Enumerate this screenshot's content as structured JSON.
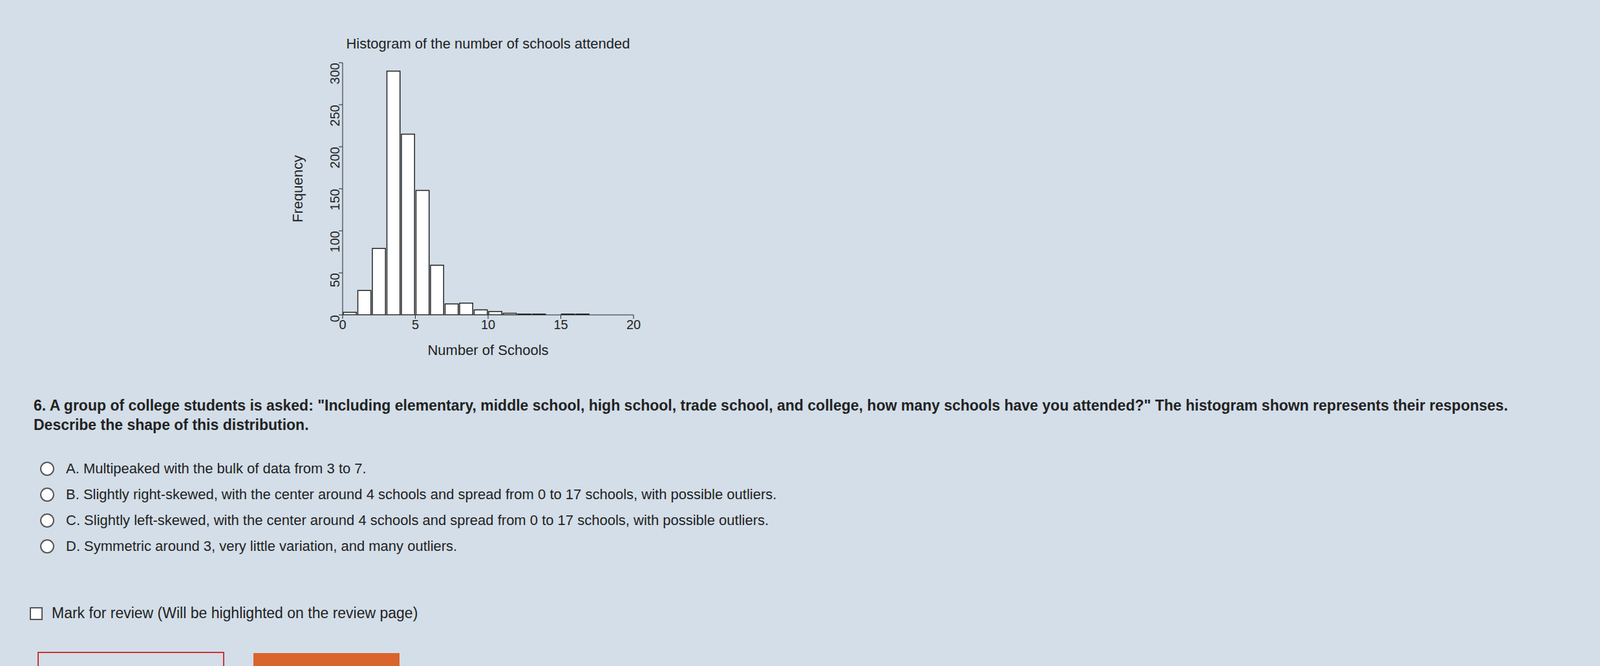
{
  "chart_data": {
    "type": "histogram",
    "title": "Histogram of the number of schools attended",
    "x_label": "Number of Schools",
    "y_label": "Frequency",
    "bins": [
      0,
      1,
      2,
      3,
      4,
      5,
      6,
      7,
      8,
      9,
      10,
      11,
      12,
      13,
      14,
      15,
      16,
      17
    ],
    "values": [
      3,
      29,
      79,
      290,
      215,
      148,
      59,
      13,
      14,
      6,
      4,
      2,
      1,
      1,
      0,
      1,
      1
    ],
    "color": "#ffffff",
    "xlim": [
      0,
      20
    ],
    "xticks": [
      0,
      5,
      10,
      15,
      20
    ],
    "ylim": [
      0,
      300
    ],
    "yticks": [
      0,
      50,
      100,
      150,
      200,
      250,
      300
    ],
    "grid": false
  },
  "question": {
    "text": "6. A group of college students is asked: \"Including elementary, middle school, high school, trade school, and college, how many schools have you attended?\" The histogram shown represents their responses. Describe the shape of this distribution.",
    "options": [
      "A. Multipeaked with the bulk of data from 3 to 7.",
      "B. Slightly right-skewed, with the center around 4 schools and spread from 0 to 17 schools, with possible outliers.",
      "C. Slightly left-skewed, with the center around 4 schools and spread from 0 to 17 schools, with possible outliers.",
      "D. Symmetric around 3, very little variation, and many outliers."
    ],
    "review": "Mark for review (Will be highlighted on the review page)"
  }
}
